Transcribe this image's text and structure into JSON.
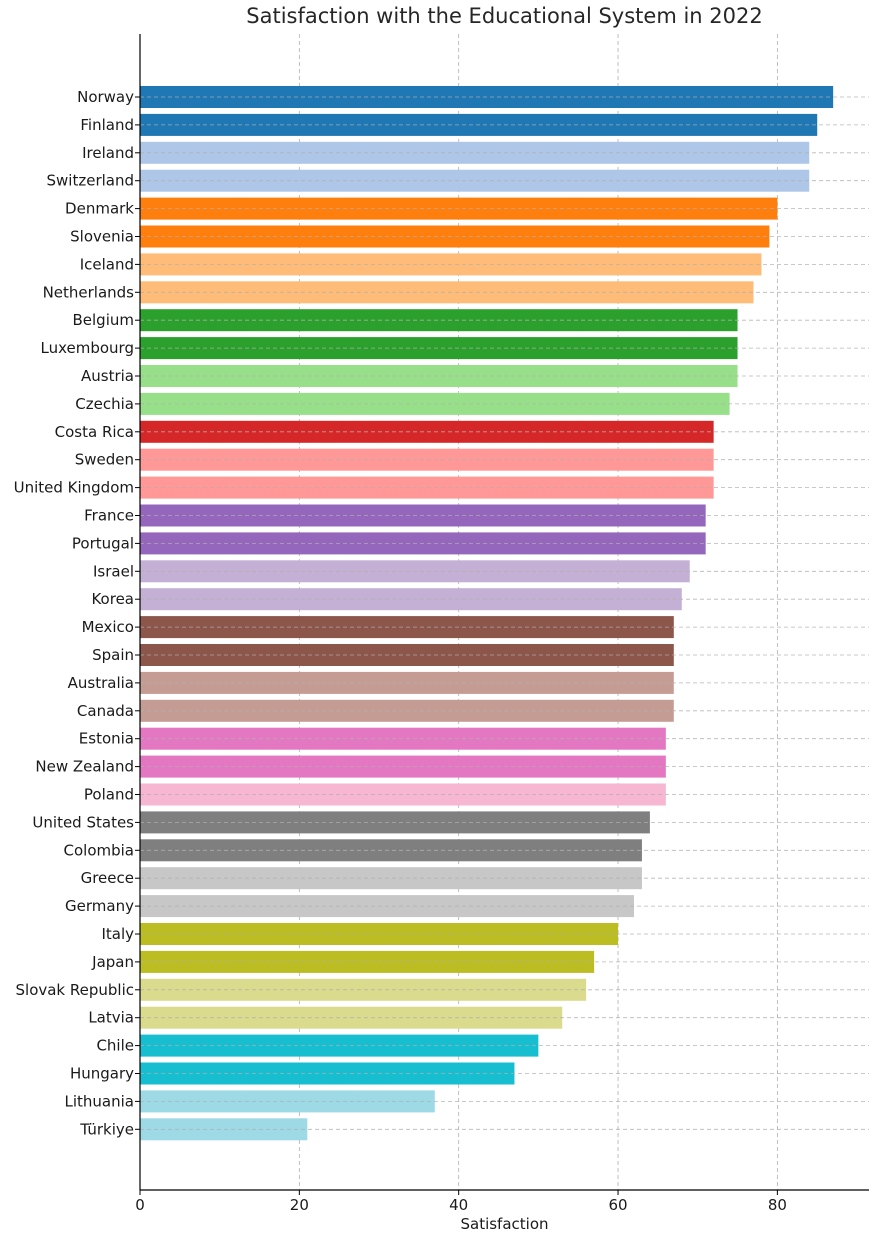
{
  "chart_data": {
    "type": "bar",
    "orientation": "horizontal",
    "title": "Satisfaction with the Educational System in 2022",
    "xlabel": "Satisfaction",
    "ylabel": "",
    "xlim": [
      0,
      91.5
    ],
    "xticks": [
      0,
      20,
      40,
      60,
      80
    ],
    "grid": true,
    "categories": [
      "Norway",
      "Finland",
      "Ireland",
      "Switzerland",
      "Denmark",
      "Slovenia",
      "Iceland",
      "Netherlands",
      "Belgium",
      "Luxembourg",
      "Austria",
      "Czechia",
      "Costa Rica",
      "Sweden",
      "United Kingdom",
      "France",
      "Portugal",
      "Israel",
      "Korea",
      "Mexico",
      "Spain",
      "Australia",
      "Canada",
      "Estonia",
      "New Zealand",
      "Poland",
      "United States",
      "Colombia",
      "Greece",
      "Germany",
      "Italy",
      "Japan",
      "Slovak Republic",
      "Latvia",
      "Chile",
      "Hungary",
      "Lithuania",
      "Türkiye"
    ],
    "values": [
      87,
      85,
      84,
      84,
      80,
      79,
      78,
      77,
      75,
      75,
      75,
      74,
      72,
      72,
      72,
      71,
      71,
      69,
      68,
      67,
      67,
      67,
      67,
      66,
      66,
      66,
      64,
      63,
      63,
      62,
      60,
      57,
      56,
      53,
      50,
      47,
      37,
      21
    ],
    "colors": [
      "#1f77b4",
      "#1f77b4",
      "#aec7e8",
      "#aec7e8",
      "#ff7f0e",
      "#ff7f0e",
      "#ffbb78",
      "#ffbb78",
      "#2ca02c",
      "#2ca02c",
      "#98df8a",
      "#98df8a",
      "#d62728",
      "#ff9896",
      "#ff9896",
      "#9467bd",
      "#9467bd",
      "#c5b0d5",
      "#c5b0d5",
      "#8c564b",
      "#8c564b",
      "#c49c94",
      "#c49c94",
      "#e377c2",
      "#e377c2",
      "#f7b6d2",
      "#7f7f7f",
      "#7f7f7f",
      "#c7c7c7",
      "#c7c7c7",
      "#bcbd22",
      "#bcbd22",
      "#dbdb8d",
      "#dbdb8d",
      "#17becf",
      "#17becf",
      "#9edae5",
      "#9edae5"
    ],
    "grid_color": "#b0b0b0",
    "axis_color": "#000000"
  }
}
